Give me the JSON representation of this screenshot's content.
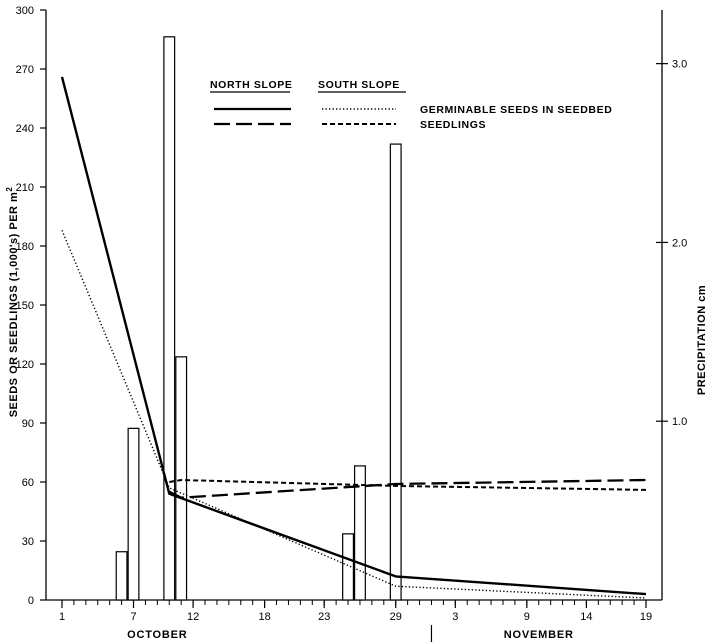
{
  "chart_data": {
    "type": "bar",
    "title": "",
    "left_axis": {
      "label": "SEEDS OR SEEDLINGS (1,000's) PER m",
      "label_superscript": "2",
      "ylim": [
        0,
        300
      ],
      "ticks": [
        "0",
        "30",
        "60",
        "90",
        "120",
        "150",
        "180",
        "210",
        "240",
        "270",
        "300"
      ]
    },
    "right_axis": {
      "label": "PRECIPITATION   cm",
      "ylim": [
        0,
        3.3
      ],
      "ticks": [
        "1.0",
        "2.0",
        "3.0"
      ]
    },
    "x_axis": {
      "range": [
        1,
        50
      ],
      "tick_labels": [
        {
          "label": "1",
          "day": 1
        },
        {
          "label": "7",
          "day": 7
        },
        {
          "label": "12",
          "day": 12
        },
        {
          "label": "18",
          "day": 18
        },
        {
          "label": "23",
          "day": 23
        },
        {
          "label": "29",
          "day": 29
        },
        {
          "label": "3",
          "day": 34
        },
        {
          "label": "9",
          "day": 40
        },
        {
          "label": "14",
          "day": 45
        },
        {
          "label": "19",
          "day": 50
        }
      ],
      "months": [
        {
          "label": "OCTOBER",
          "day": 9
        },
        {
          "label": "NOVEMBER",
          "day": 41
        }
      ],
      "month_divider_day": 32
    },
    "legend": {
      "north_header": "NORTH SLOPE",
      "south_header": "SOUTH SLOPE",
      "rows": [
        {
          "label": "GERMINABLE  SEEDS  IN  SEEDBED"
        },
        {
          "label": "SEEDLINGS"
        }
      ],
      "placement": "top-center"
    },
    "precipitation": [
      {
        "day": 6,
        "value": 0.27
      },
      {
        "day": 7,
        "value": 0.96
      },
      {
        "day": 10,
        "value": 3.15
      },
      {
        "day": 11,
        "value": 1.36
      },
      {
        "day": 25,
        "value": 0.37
      },
      {
        "day": 26,
        "value": 0.75
      },
      {
        "day": 29,
        "value": 2.55
      }
    ],
    "series": [
      {
        "key": "north_seeds",
        "points": [
          [
            1,
            266
          ],
          [
            10,
            54
          ],
          [
            29,
            12
          ],
          [
            50,
            3
          ]
        ]
      },
      {
        "key": "south_seeds",
        "points": [
          [
            1,
            188
          ],
          [
            10,
            57
          ],
          [
            29,
            7
          ],
          [
            50,
            1
          ]
        ]
      },
      {
        "key": "north_seedlings",
        "points": [
          [
            10,
            55
          ],
          [
            11,
            52
          ],
          [
            29,
            59
          ],
          [
            50,
            61
          ]
        ]
      },
      {
        "key": "south_seedlings",
        "points": [
          [
            10,
            60
          ],
          [
            11,
            61
          ],
          [
            29,
            58
          ],
          [
            50,
            56
          ]
        ]
      }
    ]
  }
}
